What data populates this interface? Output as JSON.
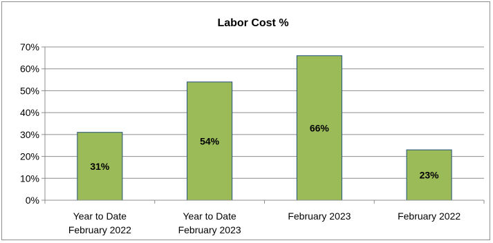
{
  "chart_data": {
    "type": "bar",
    "title": "Labor Cost  %",
    "categories": [
      [
        "Year to Date",
        "February 2022"
      ],
      [
        "Year to Date",
        "February 2023"
      ],
      [
        "February 2023"
      ],
      [
        "February 2022"
      ]
    ],
    "values": [
      31,
      54,
      66,
      23
    ],
    "data_labels": [
      "31%",
      "54%",
      "66%",
      "23%"
    ],
    "ylim": [
      0,
      70
    ],
    "yticks": [
      0,
      10,
      20,
      30,
      40,
      50,
      60,
      70
    ],
    "ytick_labels": [
      "0%",
      "10%",
      "20%",
      "30%",
      "40%",
      "50%",
      "60%",
      "70%"
    ],
    "grid": true,
    "legend": false,
    "bar_color": "#9bbb59",
    "bar_border_color": "#1f4e79"
  }
}
